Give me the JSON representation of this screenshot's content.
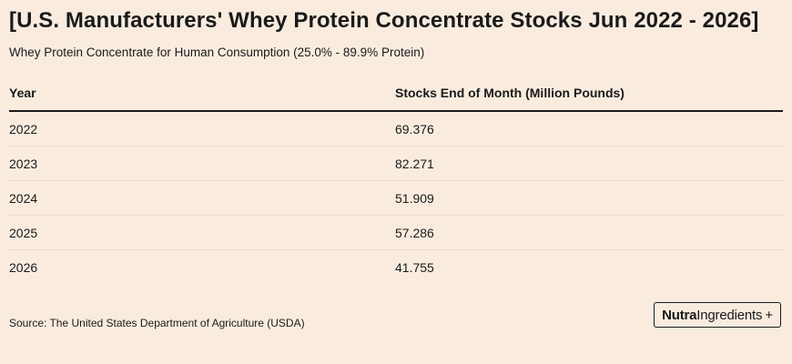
{
  "title": "[U.S. Manufacturers' Whey Protein Concentrate Stocks Jun 2022 - 2026]",
  "subtitle": "Whey Protein Concentrate for Human Consumption (25.0% - 89.9% Protein)",
  "source": "Source: The United States Department of Agriculture (USDA)",
  "logo": {
    "part1": "Nutra",
    "part2": "Ingredients",
    "part3": "+"
  },
  "chart_data": {
    "type": "table",
    "columns": [
      "Year",
      "Stocks End of Month (Million Pounds)"
    ],
    "rows": [
      [
        "2022",
        "69.376"
      ],
      [
        "2023",
        "82.271"
      ],
      [
        "2024",
        "51.909"
      ],
      [
        "2025",
        "57.286"
      ],
      [
        "2026",
        "41.755"
      ]
    ]
  }
}
